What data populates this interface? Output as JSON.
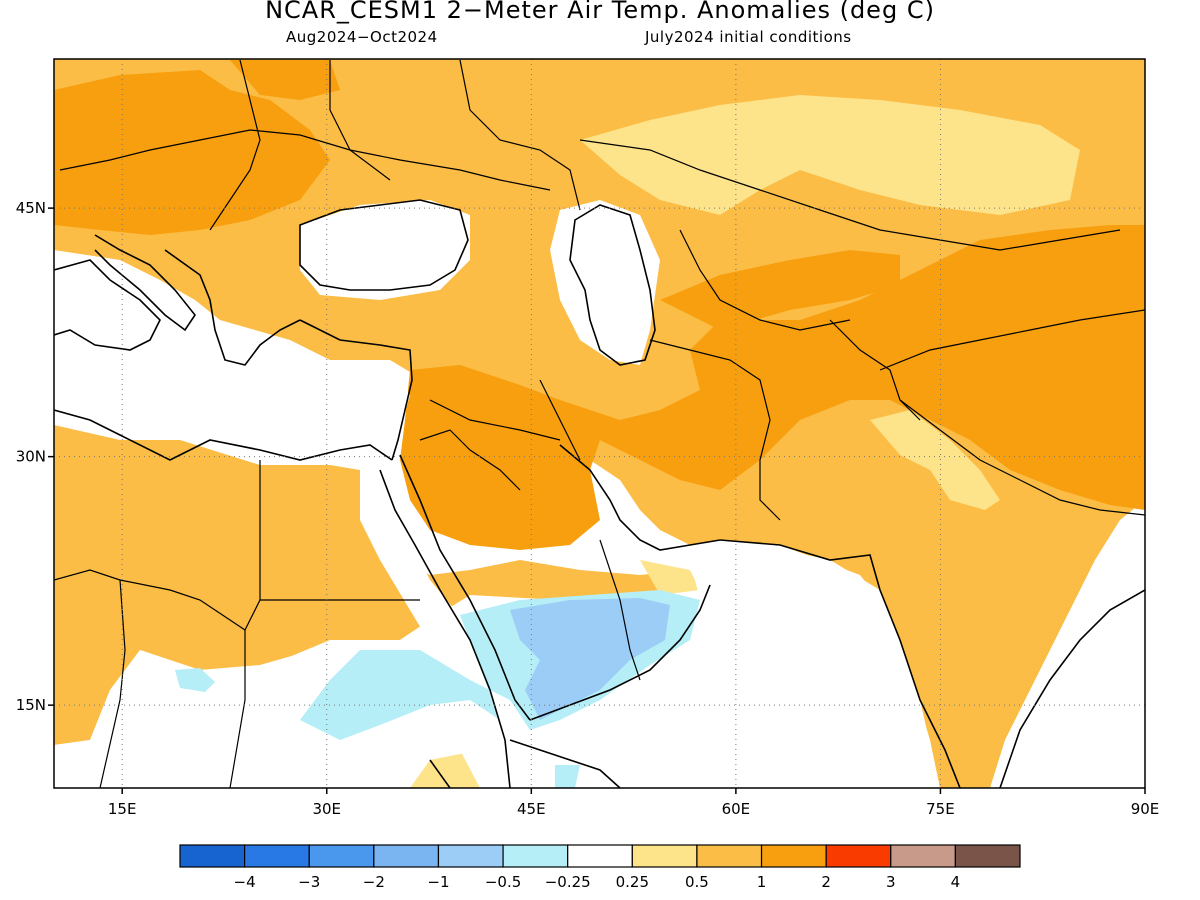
{
  "title": "NCAR_CESM1 2−Meter Air Temp. Anomalies (deg C)",
  "subtitle_left": "Aug2024−Oct2024",
  "subtitle_right": "July2024 initial conditions",
  "map": {
    "lon_range": [
      10,
      90
    ],
    "lat_range": [
      10,
      54
    ],
    "lat_ticks": [
      {
        "v": 45,
        "label": "45N"
      },
      {
        "v": 30,
        "label": "30N"
      },
      {
        "v": 15,
        "label": "15N"
      }
    ],
    "lon_ticks": [
      {
        "v": 15,
        "label": "15E"
      },
      {
        "v": 30,
        "label": "30E"
      },
      {
        "v": 45,
        "label": "45E"
      },
      {
        "v": 60,
        "label": "60E"
      },
      {
        "v": 75,
        "label": "75E"
      },
      {
        "v": 90,
        "label": "90E"
      }
    ],
    "gridlines": "dotted"
  },
  "legend": {
    "labels": [
      "−4",
      "−3",
      "−2",
      "−1",
      "−0.5",
      "−0.25",
      "0.25",
      "0.5",
      "1",
      "2",
      "3",
      "4"
    ],
    "colors": [
      "#1763d0",
      "#2878e6",
      "#4a98ee",
      "#7ab5f2",
      "#9ccdf6",
      "#b5eef7",
      "#ffffff",
      "#fde38a",
      "#fbbd45",
      "#f79f0f",
      "#fa3b00",
      "#c89a8a",
      "#7a5448"
    ]
  },
  "anomaly_colors": {
    "neg_025_05": "#b5eef7",
    "neg_05_1": "#9ccdf6",
    "neg_1_2": "#7ab5f2",
    "pos_025_05": "#fde38a",
    "pos_05_1": "#fbbd45",
    "pos_1_2": "#f79f0f"
  }
}
